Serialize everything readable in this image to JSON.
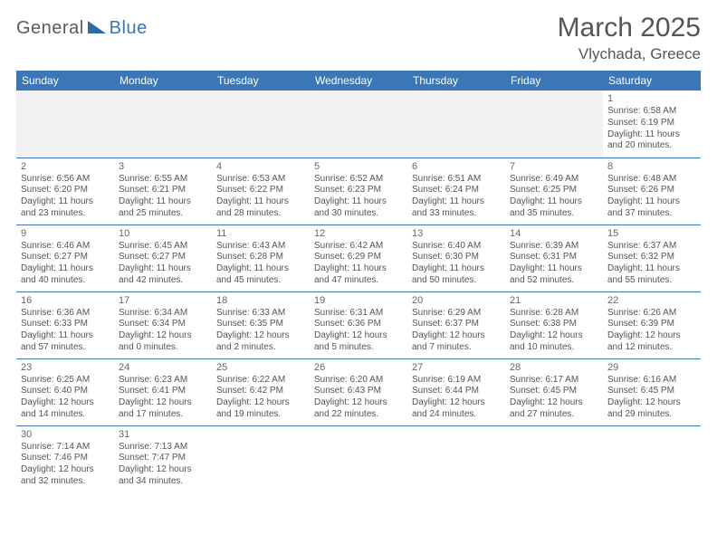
{
  "brand": {
    "part1": "General",
    "part2": "Blue"
  },
  "header": {
    "title": "March 2025",
    "location": "Vlychada, Greece"
  },
  "colors": {
    "accent": "#3b77b6",
    "text": "#555555",
    "grid_bg_empty": "#f2f2f2"
  },
  "days_of_week": [
    "Sunday",
    "Monday",
    "Tuesday",
    "Wednesday",
    "Thursday",
    "Friday",
    "Saturday"
  ],
  "weeks": [
    [
      null,
      null,
      null,
      null,
      null,
      null,
      {
        "n": "1",
        "sunrise": "Sunrise: 6:58 AM",
        "sunset": "Sunset: 6:19 PM",
        "day1": "Daylight: 11 hours",
        "day2": "and 20 minutes."
      }
    ],
    [
      {
        "n": "2",
        "sunrise": "Sunrise: 6:56 AM",
        "sunset": "Sunset: 6:20 PM",
        "day1": "Daylight: 11 hours",
        "day2": "and 23 minutes."
      },
      {
        "n": "3",
        "sunrise": "Sunrise: 6:55 AM",
        "sunset": "Sunset: 6:21 PM",
        "day1": "Daylight: 11 hours",
        "day2": "and 25 minutes."
      },
      {
        "n": "4",
        "sunrise": "Sunrise: 6:53 AM",
        "sunset": "Sunset: 6:22 PM",
        "day1": "Daylight: 11 hours",
        "day2": "and 28 minutes."
      },
      {
        "n": "5",
        "sunrise": "Sunrise: 6:52 AM",
        "sunset": "Sunset: 6:23 PM",
        "day1": "Daylight: 11 hours",
        "day2": "and 30 minutes."
      },
      {
        "n": "6",
        "sunrise": "Sunrise: 6:51 AM",
        "sunset": "Sunset: 6:24 PM",
        "day1": "Daylight: 11 hours",
        "day2": "and 33 minutes."
      },
      {
        "n": "7",
        "sunrise": "Sunrise: 6:49 AM",
        "sunset": "Sunset: 6:25 PM",
        "day1": "Daylight: 11 hours",
        "day2": "and 35 minutes."
      },
      {
        "n": "8",
        "sunrise": "Sunrise: 6:48 AM",
        "sunset": "Sunset: 6:26 PM",
        "day1": "Daylight: 11 hours",
        "day2": "and 37 minutes."
      }
    ],
    [
      {
        "n": "9",
        "sunrise": "Sunrise: 6:46 AM",
        "sunset": "Sunset: 6:27 PM",
        "day1": "Daylight: 11 hours",
        "day2": "and 40 minutes."
      },
      {
        "n": "10",
        "sunrise": "Sunrise: 6:45 AM",
        "sunset": "Sunset: 6:27 PM",
        "day1": "Daylight: 11 hours",
        "day2": "and 42 minutes."
      },
      {
        "n": "11",
        "sunrise": "Sunrise: 6:43 AM",
        "sunset": "Sunset: 6:28 PM",
        "day1": "Daylight: 11 hours",
        "day2": "and 45 minutes."
      },
      {
        "n": "12",
        "sunrise": "Sunrise: 6:42 AM",
        "sunset": "Sunset: 6:29 PM",
        "day1": "Daylight: 11 hours",
        "day2": "and 47 minutes."
      },
      {
        "n": "13",
        "sunrise": "Sunrise: 6:40 AM",
        "sunset": "Sunset: 6:30 PM",
        "day1": "Daylight: 11 hours",
        "day2": "and 50 minutes."
      },
      {
        "n": "14",
        "sunrise": "Sunrise: 6:39 AM",
        "sunset": "Sunset: 6:31 PM",
        "day1": "Daylight: 11 hours",
        "day2": "and 52 minutes."
      },
      {
        "n": "15",
        "sunrise": "Sunrise: 6:37 AM",
        "sunset": "Sunset: 6:32 PM",
        "day1": "Daylight: 11 hours",
        "day2": "and 55 minutes."
      }
    ],
    [
      {
        "n": "16",
        "sunrise": "Sunrise: 6:36 AM",
        "sunset": "Sunset: 6:33 PM",
        "day1": "Daylight: 11 hours",
        "day2": "and 57 minutes."
      },
      {
        "n": "17",
        "sunrise": "Sunrise: 6:34 AM",
        "sunset": "Sunset: 6:34 PM",
        "day1": "Daylight: 12 hours",
        "day2": "and 0 minutes."
      },
      {
        "n": "18",
        "sunrise": "Sunrise: 6:33 AM",
        "sunset": "Sunset: 6:35 PM",
        "day1": "Daylight: 12 hours",
        "day2": "and 2 minutes."
      },
      {
        "n": "19",
        "sunrise": "Sunrise: 6:31 AM",
        "sunset": "Sunset: 6:36 PM",
        "day1": "Daylight: 12 hours",
        "day2": "and 5 minutes."
      },
      {
        "n": "20",
        "sunrise": "Sunrise: 6:29 AM",
        "sunset": "Sunset: 6:37 PM",
        "day1": "Daylight: 12 hours",
        "day2": "and 7 minutes."
      },
      {
        "n": "21",
        "sunrise": "Sunrise: 6:28 AM",
        "sunset": "Sunset: 6:38 PM",
        "day1": "Daylight: 12 hours",
        "day2": "and 10 minutes."
      },
      {
        "n": "22",
        "sunrise": "Sunrise: 6:26 AM",
        "sunset": "Sunset: 6:39 PM",
        "day1": "Daylight: 12 hours",
        "day2": "and 12 minutes."
      }
    ],
    [
      {
        "n": "23",
        "sunrise": "Sunrise: 6:25 AM",
        "sunset": "Sunset: 6:40 PM",
        "day1": "Daylight: 12 hours",
        "day2": "and 14 minutes."
      },
      {
        "n": "24",
        "sunrise": "Sunrise: 6:23 AM",
        "sunset": "Sunset: 6:41 PM",
        "day1": "Daylight: 12 hours",
        "day2": "and 17 minutes."
      },
      {
        "n": "25",
        "sunrise": "Sunrise: 6:22 AM",
        "sunset": "Sunset: 6:42 PM",
        "day1": "Daylight: 12 hours",
        "day2": "and 19 minutes."
      },
      {
        "n": "26",
        "sunrise": "Sunrise: 6:20 AM",
        "sunset": "Sunset: 6:43 PM",
        "day1": "Daylight: 12 hours",
        "day2": "and 22 minutes."
      },
      {
        "n": "27",
        "sunrise": "Sunrise: 6:19 AM",
        "sunset": "Sunset: 6:44 PM",
        "day1": "Daylight: 12 hours",
        "day2": "and 24 minutes."
      },
      {
        "n": "28",
        "sunrise": "Sunrise: 6:17 AM",
        "sunset": "Sunset: 6:45 PM",
        "day1": "Daylight: 12 hours",
        "day2": "and 27 minutes."
      },
      {
        "n": "29",
        "sunrise": "Sunrise: 6:16 AM",
        "sunset": "Sunset: 6:45 PM",
        "day1": "Daylight: 12 hours",
        "day2": "and 29 minutes."
      }
    ],
    [
      {
        "n": "30",
        "sunrise": "Sunrise: 7:14 AM",
        "sunset": "Sunset: 7:46 PM",
        "day1": "Daylight: 12 hours",
        "day2": "and 32 minutes."
      },
      {
        "n": "31",
        "sunrise": "Sunrise: 7:13 AM",
        "sunset": "Sunset: 7:47 PM",
        "day1": "Daylight: 12 hours",
        "day2": "and 34 minutes."
      },
      null,
      null,
      null,
      null,
      null
    ]
  ]
}
